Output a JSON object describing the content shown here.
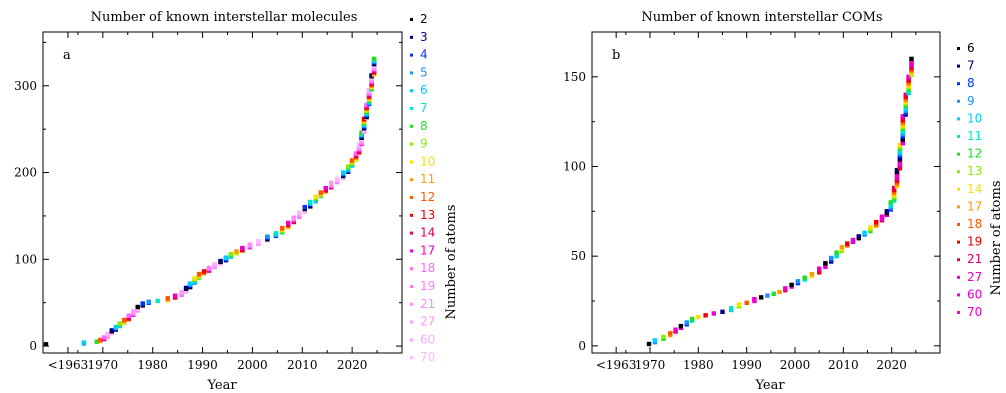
{
  "chart_data": [
    {
      "type": "scatter",
      "title": "Number of known interstellar molecules",
      "panel": "a",
      "xlabel": "Year",
      "side_label": "Number of atoms",
      "x_ticks": [
        "<1963",
        "1970",
        "1980",
        "1990",
        "2000",
        "2010",
        "2020"
      ],
      "y_ticks": [
        "0",
        "100",
        "200",
        "300"
      ],
      "xlim": [
        1958,
        2030
      ],
      "ylim": [
        -8,
        362
      ],
      "legend": [
        {
          "label": "2",
          "color": "#000000"
        },
        {
          "label": "3",
          "color": "#000080"
        },
        {
          "label": "4",
          "color": "#0033ff"
        },
        {
          "label": "5",
          "color": "#1e90ff"
        },
        {
          "label": "6",
          "color": "#00ccff"
        },
        {
          "label": "7",
          "color": "#00e6c8"
        },
        {
          "label": "8",
          "color": "#22dd22"
        },
        {
          "label": "9",
          "color": "#88ee00"
        },
        {
          "label": "10",
          "color": "#ffe000"
        },
        {
          "label": "11",
          "color": "#ff9900"
        },
        {
          "label": "12",
          "color": "#ff5500"
        },
        {
          "label": "13",
          "color": "#ee0000"
        },
        {
          "label": "14",
          "color": "#e00060"
        },
        {
          "label": "17",
          "color": "#ee00cc"
        },
        {
          "label": "18",
          "color": "#ff66ff"
        },
        {
          "label": "19",
          "color": "#ff77ff"
        },
        {
          "label": "21",
          "color": "#ff88ff"
        },
        {
          "label": "27",
          "color": "#ff99ff"
        },
        {
          "label": "60",
          "color": "#ffaaff"
        },
        {
          "label": "70",
          "color": "#ffbbff"
        }
      ],
      "series": [
        {
          "x": [
            1958.6,
            1966.2,
            1968.8,
            1969.5,
            1970.3,
            1971.0,
            1971.8,
            1972.6,
            1973.4,
            1974.3,
            1975.2,
            1976.1,
            1977.0,
            1978.0,
            1979.2,
            1981.0,
            1983.0,
            1984.5,
            1985.8,
            1986.7,
            1987.5,
            1988.4,
            1989.3,
            1990.3,
            1991.3,
            1992.4,
            1993.6,
            1994.7,
            1995.7,
            1996.8,
            1998.0,
            1999.5,
            2001.2,
            2003.0,
            2004.7,
            2006.0,
            2007.2,
            2008.3,
            2009.4,
            2010.5,
            2011.6,
            2012.7,
            2013.7,
            2014.7,
            2015.8,
            2017.0,
            2018.2,
            2019.2,
            2020.0,
            2020.8,
            2021.4,
            2021.9,
            2022.4,
            2022.9,
            2023.4,
            2023.9,
            2024.4
          ],
          "y": [
            2,
            4,
            5,
            7,
            10,
            14,
            18,
            22,
            26,
            30,
            35,
            40,
            45,
            49,
            51,
            52,
            55,
            58,
            62,
            67,
            72,
            78,
            83,
            86,
            90,
            94,
            98,
            102,
            106,
            109,
            113,
            117,
            121,
            126,
            130,
            136,
            142,
            148,
            154,
            160,
            166,
            172,
            177,
            182,
            188,
            193,
            200,
            207,
            214,
            222,
            232,
            246,
            262,
            278,
            295,
            312,
            331
          ]
        }
      ]
    },
    {
      "type": "scatter",
      "title": "Number of known interstellar COMs",
      "panel": "b",
      "xlabel": "Year",
      "side_label": "Number of atoms",
      "x_ticks": [
        "<1963",
        "1970",
        "1980",
        "1990",
        "2000",
        "2010",
        "2020"
      ],
      "y_ticks": [
        "0",
        "50",
        "100",
        "150"
      ],
      "xlim": [
        1958,
        2030
      ],
      "ylim": [
        -4,
        175
      ],
      "legend": [
        {
          "label": "6",
          "color": "#000000"
        },
        {
          "label": "7",
          "color": "#000080"
        },
        {
          "label": "8",
          "color": "#0033ff"
        },
        {
          "label": "9",
          "color": "#1e90ff"
        },
        {
          "label": "10",
          "color": "#00ccff"
        },
        {
          "label": "11",
          "color": "#00e6c8"
        },
        {
          "label": "12",
          "color": "#22dd22"
        },
        {
          "label": "13",
          "color": "#88ee00"
        },
        {
          "label": "14",
          "color": "#ffe000"
        },
        {
          "label": "17",
          "color": "#ff9900"
        },
        {
          "label": "18",
          "color": "#ff5500"
        },
        {
          "label": "19",
          "color": "#ee0000"
        },
        {
          "label": "21",
          "color": "#e00060"
        },
        {
          "label": "27",
          "color": "#ee00cc"
        },
        {
          "label": "60",
          "color": "#ee00cc"
        },
        {
          "label": "70",
          "color": "#ee00cc"
        }
      ],
      "series": [
        {
          "x": [
            1969.8,
            1971.0,
            1972.8,
            1974.2,
            1975.3,
            1976.4,
            1977.6,
            1978.7,
            1980.0,
            1981.5,
            1983.2,
            1985.0,
            1986.8,
            1988.4,
            1990.0,
            1991.6,
            1993.0,
            1994.3,
            1995.6,
            1996.8,
            1998.0,
            1999.3,
            2000.6,
            2002.0,
            2003.5,
            2005.0,
            2006.3,
            2007.5,
            2008.6,
            2009.7,
            2010.8,
            2012.0,
            2013.2,
            2014.4,
            2015.6,
            2016.8,
            2018.0,
            2019.0,
            2019.8,
            2020.5,
            2021.1,
            2021.7,
            2022.3,
            2022.9,
            2023.5,
            2024.1
          ],
          "y": [
            1,
            3,
            5,
            7,
            9,
            11,
            13,
            15,
            16,
            17,
            18,
            19,
            21,
            23,
            24,
            26,
            27,
            28,
            29,
            30,
            32,
            34,
            36,
            38,
            40,
            43,
            46,
            49,
            52,
            55,
            57,
            59,
            61,
            63,
            66,
            69,
            72,
            75,
            80,
            88,
            98,
            112,
            128,
            140,
            150,
            160
          ]
        }
      ]
    }
  ]
}
